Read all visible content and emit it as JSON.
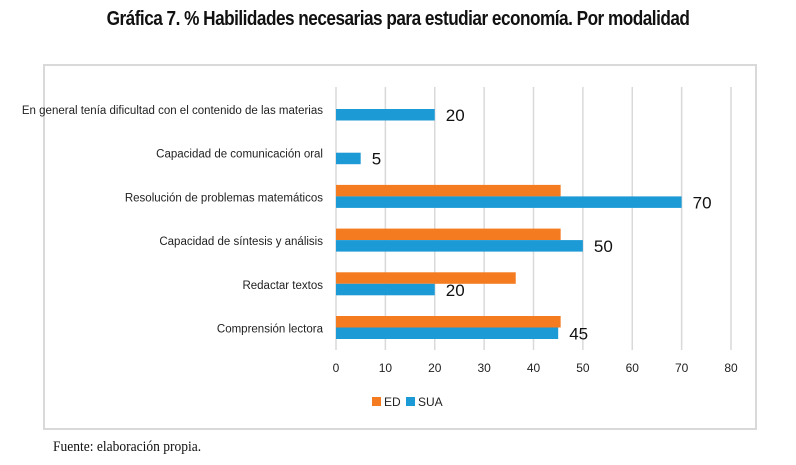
{
  "title": "Gráfica 7. % Habilidades necesarias para estudiar economía. Por modalidad",
  "source": "Fuente: elaboración propia.",
  "chart_data": {
    "type": "bar",
    "orientation": "horizontal",
    "title": "Gráfica 7. % Habilidades necesarias para estudiar economía. Por modalidad",
    "xlabel": "",
    "ylabel": "",
    "xlim": [
      0,
      80
    ],
    "xticks": [
      0,
      10,
      20,
      30,
      40,
      50,
      60,
      70,
      80
    ],
    "grid": "vertical",
    "legend_position": "bottom",
    "categories": [
      "En general tenía dificultad con el contenido de las materias",
      "Capacidad de comunicación oral",
      "Resolución de problemas matemáticos",
      "Capacidad de síntesis y análisis",
      "Redactar textos",
      "Comprensión lectora"
    ],
    "series": [
      {
        "name": "ED",
        "color": "#F47B20",
        "values": [
          0,
          0,
          45.5,
          45.5,
          36.4,
          45.5
        ],
        "show_labels": false
      },
      {
        "name": "SUA",
        "color": "#1C9AD6",
        "values": [
          20,
          5,
          70,
          50,
          20,
          45
        ],
        "show_labels": true
      }
    ],
    "data_labels": [
      "20",
      "5",
      "70",
      "50",
      "20",
      "45"
    ]
  }
}
